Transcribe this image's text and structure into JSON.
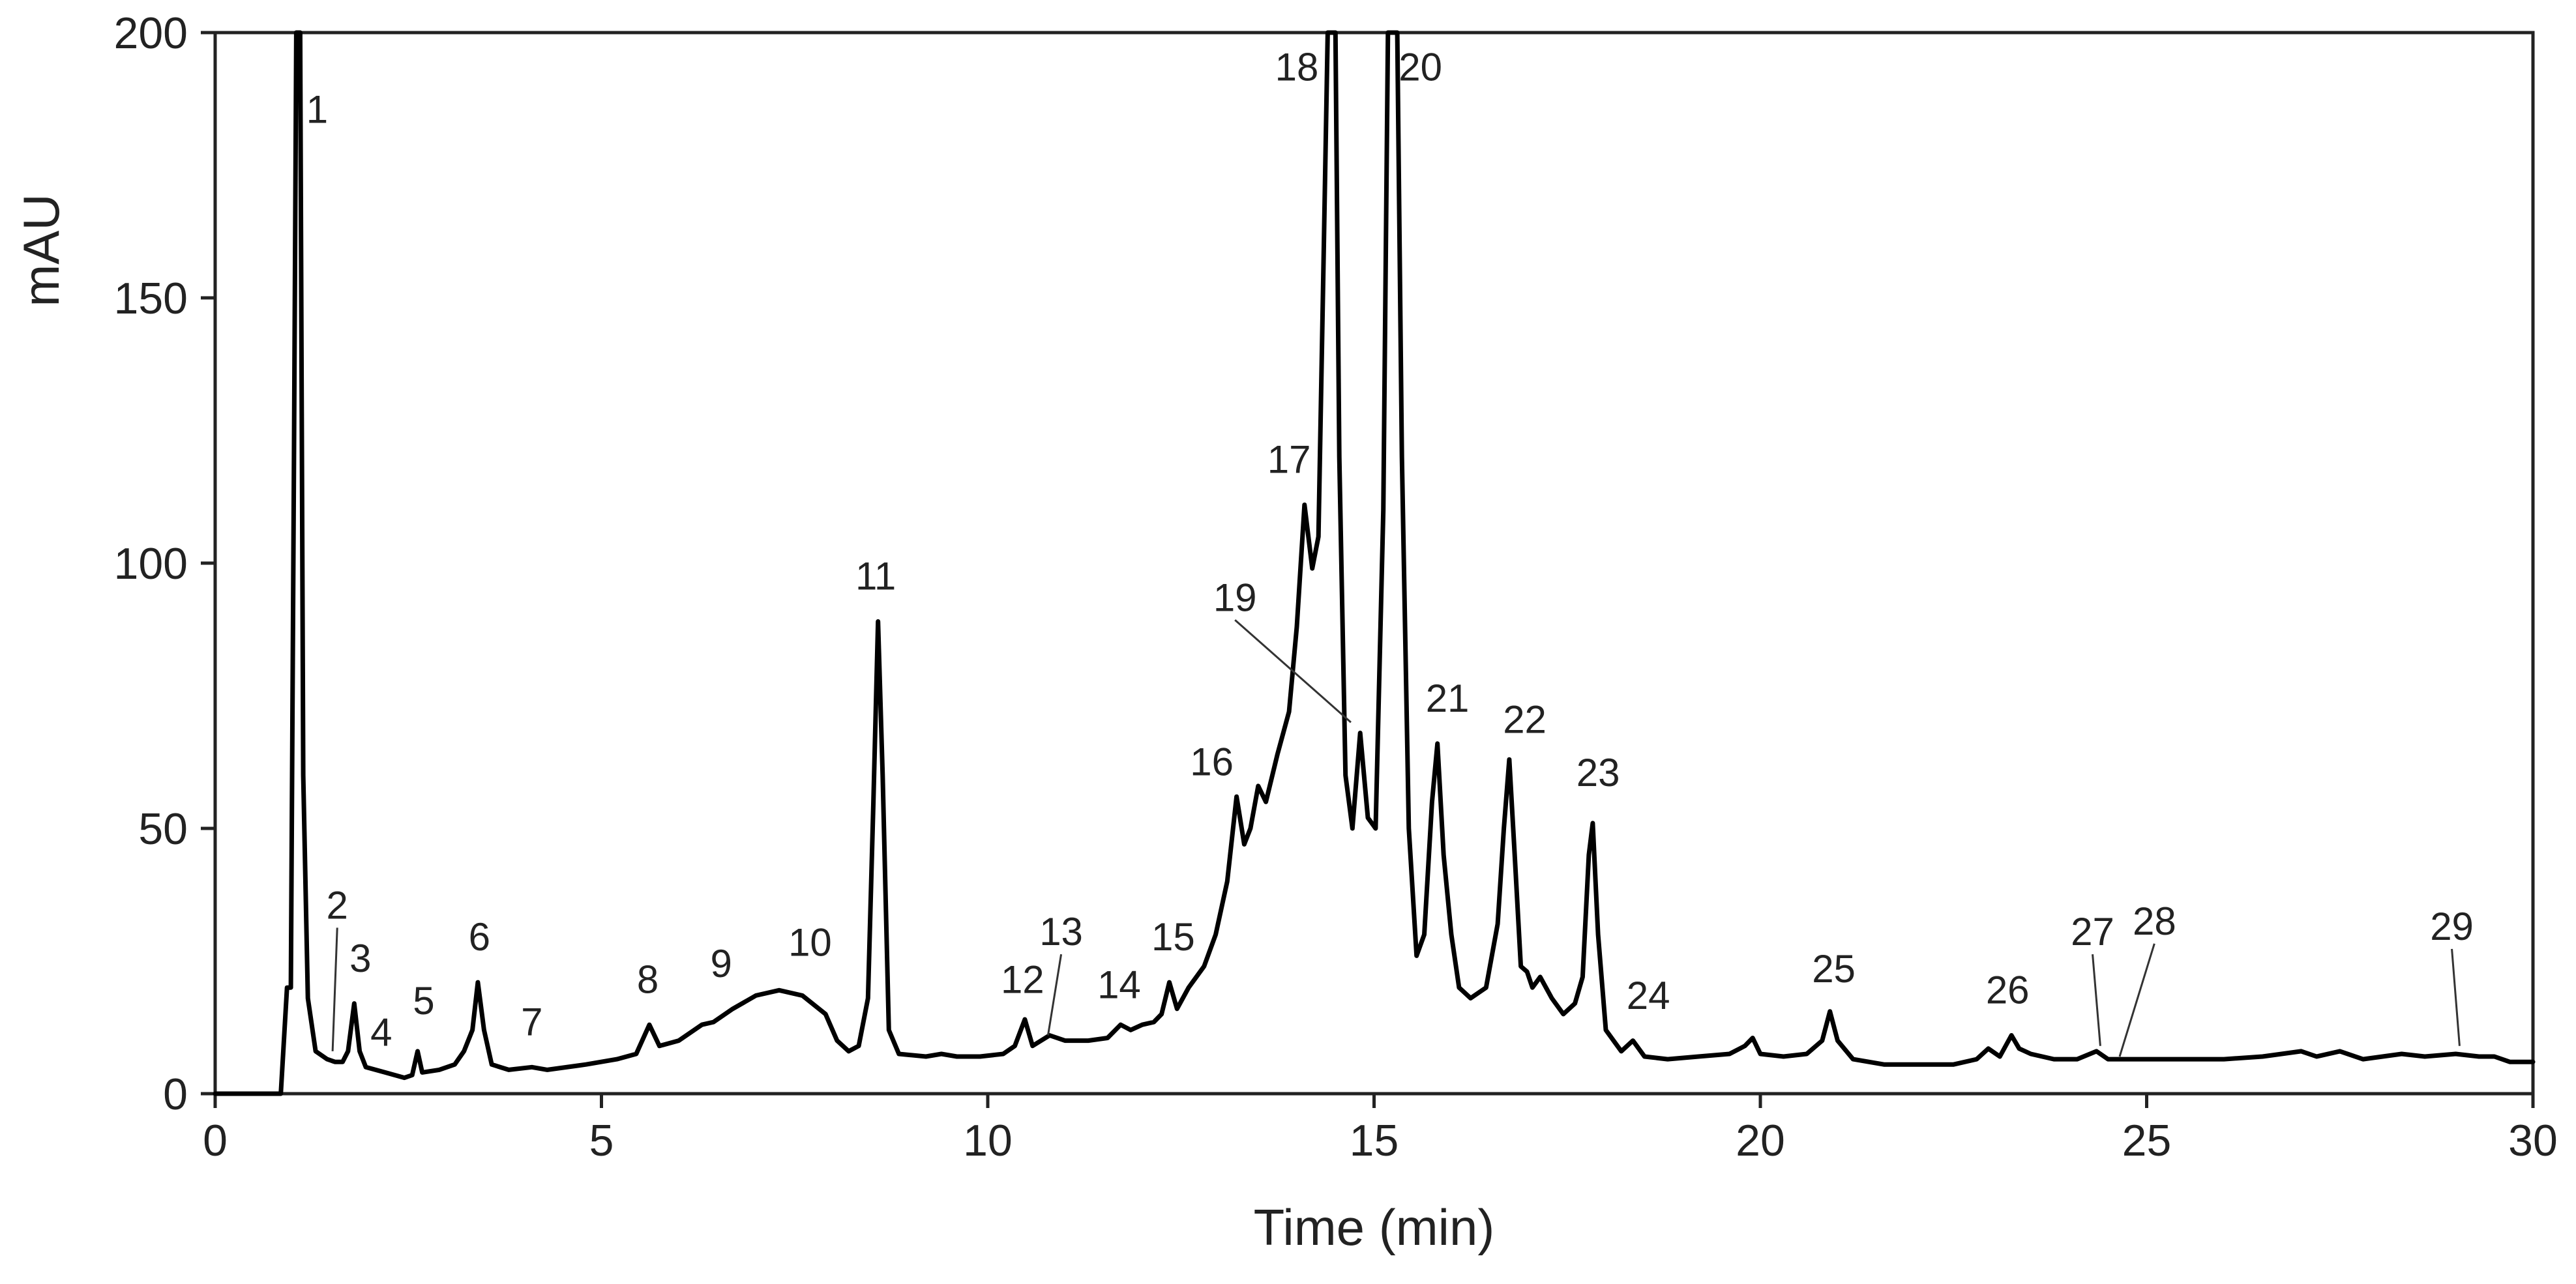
{
  "chart_data": {
    "type": "line",
    "xlabel": "Time (min)",
    "ylabel": "mAU",
    "xlim": [
      0,
      30
    ],
    "ylim": [
      0,
      200
    ],
    "x_ticks": [
      0,
      5,
      10,
      15,
      20,
      25,
      30
    ],
    "y_ticks": [
      0,
      50,
      100,
      150,
      200
    ],
    "grid": false,
    "line_color": "#000000",
    "series": [
      {
        "points": [
          [
            0.0,
            0.0
          ],
          [
            0.85,
            0.0
          ],
          [
            0.93,
            20.0
          ],
          [
            0.98,
            20.0
          ],
          [
            1.02,
            120.0
          ],
          [
            1.05,
            200.0
          ],
          [
            1.1,
            200.0
          ],
          [
            1.14,
            60.0
          ],
          [
            1.2,
            18.0
          ],
          [
            1.3,
            8.0
          ],
          [
            1.45,
            6.5
          ],
          [
            1.55,
            6.0
          ],
          [
            1.65,
            6.0
          ],
          [
            1.72,
            8.0
          ],
          [
            1.8,
            17.0
          ],
          [
            1.87,
            8.0
          ],
          [
            1.95,
            5.0
          ],
          [
            2.2,
            4.0
          ],
          [
            2.45,
            3.0
          ],
          [
            2.55,
            3.5
          ],
          [
            2.62,
            8.0
          ],
          [
            2.68,
            4.0
          ],
          [
            2.9,
            4.5
          ],
          [
            3.1,
            5.5
          ],
          [
            3.22,
            8.0
          ],
          [
            3.33,
            12.0
          ],
          [
            3.4,
            21.0
          ],
          [
            3.48,
            12.0
          ],
          [
            3.58,
            5.5
          ],
          [
            3.8,
            4.5
          ],
          [
            4.1,
            5.0
          ],
          [
            4.3,
            4.5
          ],
          [
            4.8,
            5.5
          ],
          [
            5.2,
            6.5
          ],
          [
            5.45,
            7.5
          ],
          [
            5.62,
            13.0
          ],
          [
            5.75,
            9.0
          ],
          [
            6.0,
            10.0
          ],
          [
            6.3,
            13.0
          ],
          [
            6.45,
            13.5
          ],
          [
            6.7,
            16.0
          ],
          [
            7.0,
            18.5
          ],
          [
            7.3,
            19.5
          ],
          [
            7.6,
            18.5
          ],
          [
            7.9,
            15.0
          ],
          [
            8.05,
            10.0
          ],
          [
            8.2,
            8.0
          ],
          [
            8.33,
            9.0
          ],
          [
            8.45,
            18.0
          ],
          [
            8.52,
            55.0
          ],
          [
            8.58,
            89.0
          ],
          [
            8.64,
            60.0
          ],
          [
            8.72,
            12.0
          ],
          [
            8.85,
            7.5
          ],
          [
            9.2,
            7.0
          ],
          [
            9.4,
            7.5
          ],
          [
            9.6,
            7.0
          ],
          [
            9.9,
            7.0
          ],
          [
            10.2,
            7.5
          ],
          [
            10.35,
            9.0
          ],
          [
            10.48,
            14.0
          ],
          [
            10.58,
            9.0
          ],
          [
            10.8,
            11.0
          ],
          [
            11.0,
            10.0
          ],
          [
            11.3,
            10.0
          ],
          [
            11.55,
            10.5
          ],
          [
            11.72,
            13.0
          ],
          [
            11.85,
            12.0
          ],
          [
            12.0,
            13.0
          ],
          [
            12.15,
            13.5
          ],
          [
            12.25,
            15.0
          ],
          [
            12.35,
            21.0
          ],
          [
            12.45,
            16.0
          ],
          [
            12.6,
            20.0
          ],
          [
            12.8,
            24.0
          ],
          [
            12.95,
            30.0
          ],
          [
            13.1,
            40.0
          ],
          [
            13.22,
            56.0
          ],
          [
            13.32,
            47.0
          ],
          [
            13.4,
            50.0
          ],
          [
            13.5,
            58.0
          ],
          [
            13.6,
            55.0
          ],
          [
            13.75,
            64.0
          ],
          [
            13.9,
            72.0
          ],
          [
            14.0,
            88.0
          ],
          [
            14.1,
            111.0
          ],
          [
            14.2,
            99.0
          ],
          [
            14.28,
            105.0
          ],
          [
            14.35,
            160.0
          ],
          [
            14.4,
            200.0
          ],
          [
            14.5,
            200.0
          ],
          [
            14.55,
            120.0
          ],
          [
            14.63,
            60.0
          ],
          [
            14.72,
            50.0
          ],
          [
            14.82,
            68.0
          ],
          [
            14.92,
            52.0
          ],
          [
            15.02,
            50.0
          ],
          [
            15.12,
            110.0
          ],
          [
            15.18,
            200.0
          ],
          [
            15.3,
            200.0
          ],
          [
            15.36,
            120.0
          ],
          [
            15.45,
            50.0
          ],
          [
            15.55,
            26.0
          ],
          [
            15.65,
            30.0
          ],
          [
            15.75,
            55.0
          ],
          [
            15.82,
            66.0
          ],
          [
            15.9,
            45.0
          ],
          [
            16.0,
            30.0
          ],
          [
            16.1,
            20.0
          ],
          [
            16.25,
            18.0
          ],
          [
            16.45,
            20.0
          ],
          [
            16.6,
            32.0
          ],
          [
            16.68,
            50.0
          ],
          [
            16.75,
            63.0
          ],
          [
            16.82,
            45.0
          ],
          [
            16.9,
            24.0
          ],
          [
            16.98,
            23.0
          ],
          [
            17.05,
            20.0
          ],
          [
            17.15,
            22.0
          ],
          [
            17.3,
            18.0
          ],
          [
            17.45,
            15.0
          ],
          [
            17.6,
            17.0
          ],
          [
            17.7,
            22.0
          ],
          [
            17.78,
            45.0
          ],
          [
            17.83,
            51.0
          ],
          [
            17.9,
            30.0
          ],
          [
            18.0,
            12.0
          ],
          [
            18.2,
            8.0
          ],
          [
            18.35,
            10.0
          ],
          [
            18.5,
            7.0
          ],
          [
            18.8,
            6.5
          ],
          [
            19.2,
            7.0
          ],
          [
            19.6,
            7.5
          ],
          [
            19.8,
            9.0
          ],
          [
            19.9,
            10.5
          ],
          [
            20.0,
            7.5
          ],
          [
            20.3,
            7.0
          ],
          [
            20.6,
            7.5
          ],
          [
            20.8,
            10.0
          ],
          [
            20.9,
            15.5
          ],
          [
            21.0,
            10.0
          ],
          [
            21.2,
            6.5
          ],
          [
            21.6,
            5.5
          ],
          [
            22.0,
            5.5
          ],
          [
            22.5,
            5.5
          ],
          [
            22.8,
            6.5
          ],
          [
            22.95,
            8.5
          ],
          [
            23.1,
            7.0
          ],
          [
            23.25,
            11.0
          ],
          [
            23.35,
            8.5
          ],
          [
            23.5,
            7.5
          ],
          [
            23.8,
            6.5
          ],
          [
            24.1,
            6.5
          ],
          [
            24.35,
            8.0
          ],
          [
            24.5,
            6.5
          ],
          [
            25.0,
            6.5
          ],
          [
            25.5,
            6.5
          ],
          [
            26.0,
            6.5
          ],
          [
            26.5,
            7.0
          ],
          [
            27.0,
            8.0
          ],
          [
            27.2,
            7.0
          ],
          [
            27.5,
            8.0
          ],
          [
            27.8,
            6.5
          ],
          [
            28.3,
            7.5
          ],
          [
            28.6,
            7.0
          ],
          [
            29.0,
            7.5
          ],
          [
            29.3,
            7.0
          ],
          [
            29.5,
            7.0
          ],
          [
            29.7,
            6.0
          ],
          [
            30.0,
            6.0
          ]
        ]
      }
    ],
    "peaks": [
      {
        "label": "1",
        "x": 1.32,
        "y": 183
      },
      {
        "label": "2",
        "x": 1.58,
        "y": 33,
        "leader_to": [
          1.52,
          8
        ]
      },
      {
        "label": "3",
        "x": 1.88,
        "y": 23
      },
      {
        "label": "4",
        "x": 2.15,
        "y": 9
      },
      {
        "label": "5",
        "x": 2.7,
        "y": 15
      },
      {
        "label": "6",
        "x": 3.42,
        "y": 27
      },
      {
        "label": "7",
        "x": 4.1,
        "y": 11
      },
      {
        "label": "8",
        "x": 5.6,
        "y": 19
      },
      {
        "label": "9",
        "x": 6.55,
        "y": 22
      },
      {
        "label": "10",
        "x": 7.7,
        "y": 26
      },
      {
        "label": "11",
        "x": 8.55,
        "y": 95
      },
      {
        "label": "12",
        "x": 10.45,
        "y": 19
      },
      {
        "label": "13",
        "x": 10.95,
        "y": 28,
        "leader_to": [
          10.78,
          11
        ]
      },
      {
        "label": "14",
        "x": 11.7,
        "y": 18
      },
      {
        "label": "15",
        "x": 12.4,
        "y": 27
      },
      {
        "label": "16",
        "x": 12.9,
        "y": 60
      },
      {
        "label": "17",
        "x": 13.9,
        "y": 117
      },
      {
        "label": "18",
        "x": 14.0,
        "y": 191
      },
      {
        "label": "19",
        "x": 13.2,
        "y": 91,
        "leader_to": [
          14.7,
          70
        ]
      },
      {
        "label": "20",
        "x": 15.6,
        "y": 191
      },
      {
        "label": "21",
        "x": 15.95,
        "y": 72
      },
      {
        "label": "22",
        "x": 16.95,
        "y": 68
      },
      {
        "label": "23",
        "x": 17.9,
        "y": 58
      },
      {
        "label": "24",
        "x": 18.55,
        "y": 16
      },
      {
        "label": "25",
        "x": 20.95,
        "y": 21
      },
      {
        "label": "26",
        "x": 23.2,
        "y": 17
      },
      {
        "label": "27",
        "x": 24.3,
        "y": 28,
        "leader_to": [
          24.4,
          9
        ]
      },
      {
        "label": "28",
        "x": 25.1,
        "y": 30,
        "leader_to": [
          24.65,
          7
        ]
      },
      {
        "label": "29",
        "x": 28.95,
        "y": 29,
        "leader_to": [
          29.05,
          9
        ]
      }
    ]
  }
}
